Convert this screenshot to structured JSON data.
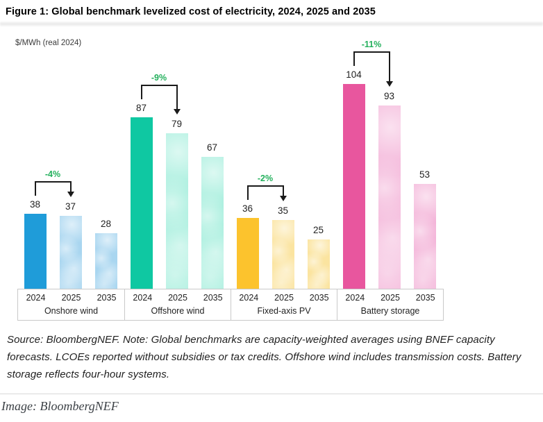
{
  "figure": {
    "title": "Figure 1: Global benchmark levelized cost of electricity, 2024, 2025 and 2035",
    "unit_label": "$/MWh (real 2024)",
    "source_note": "Source: BloombergNEF. Note: Global benchmarks are capacity-weighted averages using BNEF capacity forecasts. LCOEs reported without subsidies or tax credits. Offshore wind includes transmission costs. Battery storage reflects four-hour systems.",
    "image_credit": "Image: BloombergNEF"
  },
  "colors": {
    "annotation_green": "#23b05c",
    "bracket_black": "#1a1a1a",
    "axis_border": "#c9c9c9",
    "onshore_solid": "#1f9cd9",
    "onshore_light": "#a9d6f0",
    "offshore_solid": "#0fc8a2",
    "offshore_light": "#a3eedc",
    "pv_solid": "#fcc32d",
    "pv_light": "#fbe4a0",
    "battery_solid": "#e8569e",
    "battery_light": "#f3b1d7"
  },
  "chart_data": {
    "type": "bar",
    "title": "Global benchmark levelized cost of electricity, 2024, 2025 and 2035",
    "ylabel": "$/MWh (real 2024)",
    "ylim": [
      0,
      110
    ],
    "grid": false,
    "legend": "none",
    "years": [
      "2024",
      "2025",
      "2035"
    ],
    "groups": [
      {
        "label": "Onshore wind",
        "values": [
          38,
          37,
          28
        ],
        "change_2024_2025": "-4%",
        "solid": "#1f9cd9",
        "light": "#a9d6f0"
      },
      {
        "label": "Offshore wind",
        "values": [
          87,
          79,
          67
        ],
        "change_2024_2025": "-9%",
        "solid": "#0fc8a2",
        "light": "#a3eedc"
      },
      {
        "label": "Fixed-axis PV",
        "values": [
          36,
          35,
          25
        ],
        "change_2024_2025": "-2%",
        "solid": "#fcc32d",
        "light": "#fbe4a0"
      },
      {
        "label": "Battery storage",
        "values": [
          104,
          93,
          53
        ],
        "change_2024_2025": "-11%",
        "solid": "#e8569e",
        "light": "#f3b1d7"
      }
    ]
  }
}
